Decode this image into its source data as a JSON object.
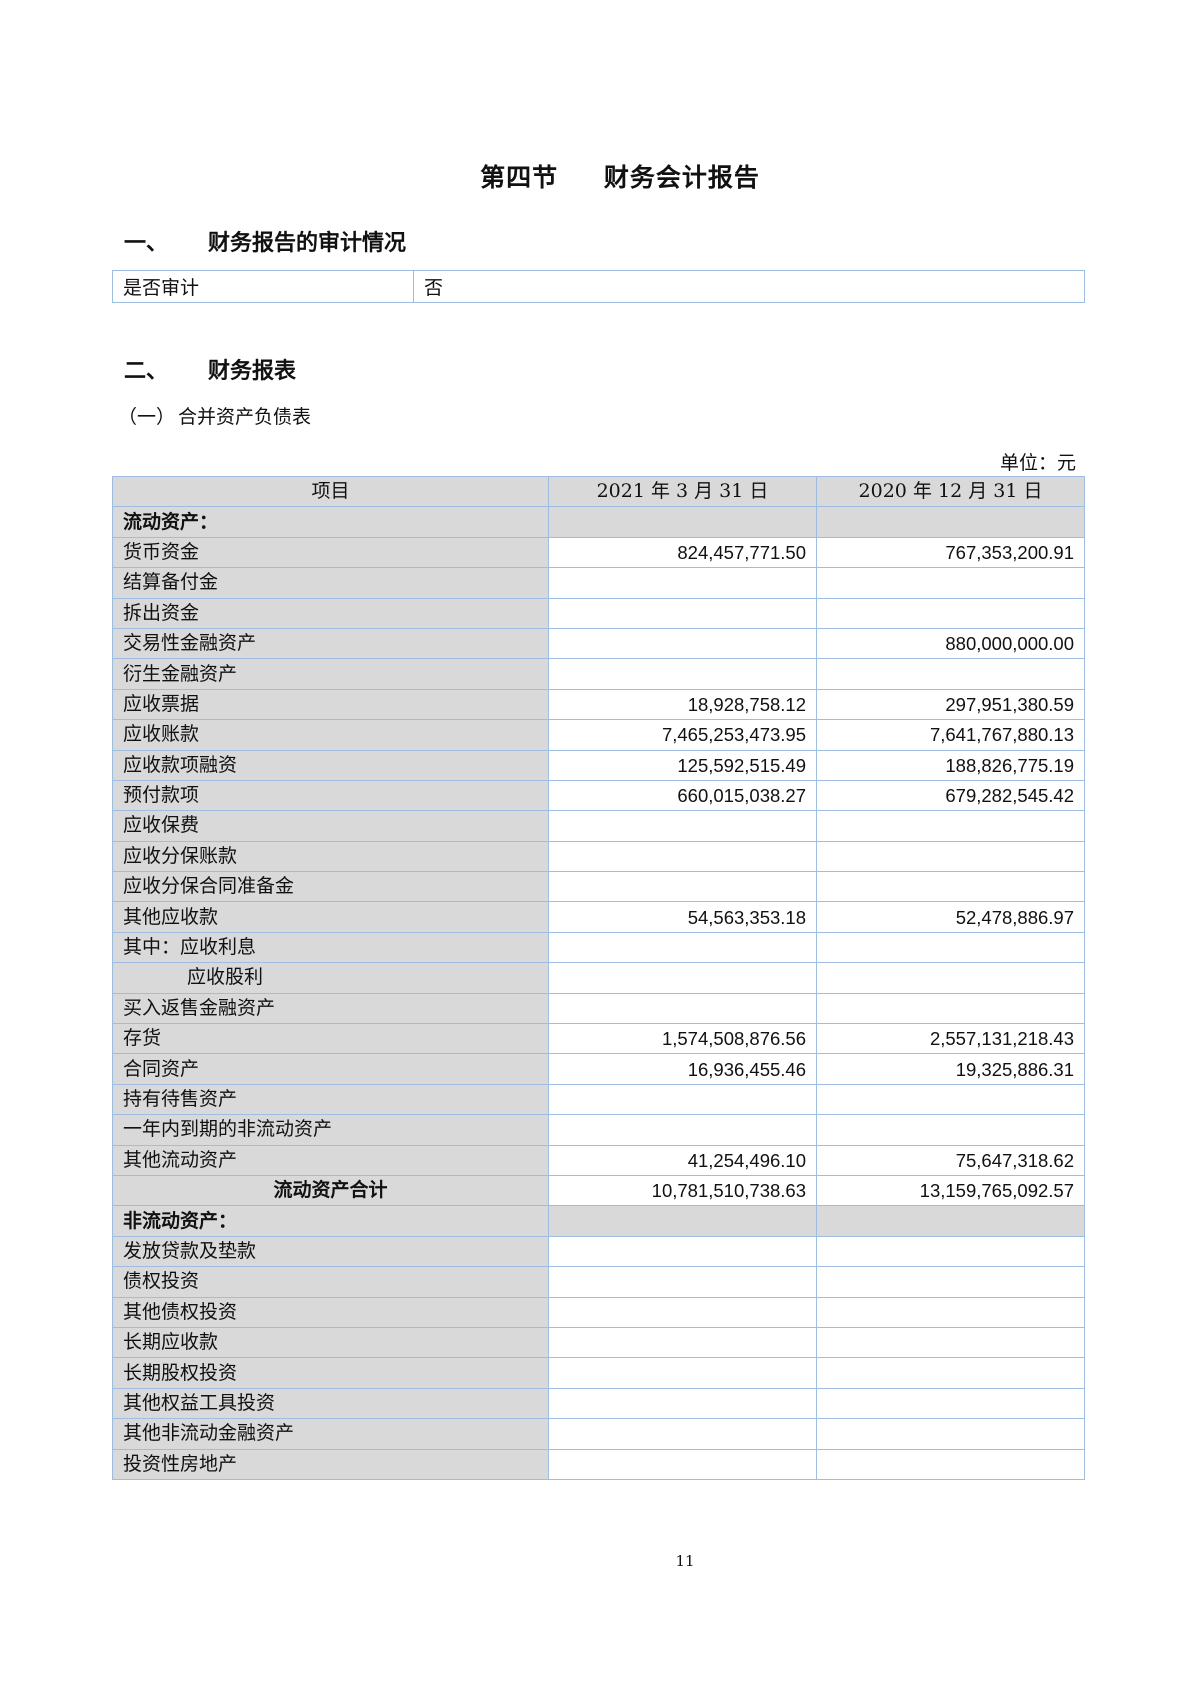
{
  "title": {
    "section": "第四节",
    "name": "财务会计报告"
  },
  "audit_section": {
    "number": "一、",
    "heading": "财务报告的审计情况",
    "label": "是否审计",
    "value": "否"
  },
  "statements_section": {
    "number": "二、",
    "heading": "财务报表"
  },
  "balance_sheet": {
    "number": "（一）",
    "heading": "合并资产负债表",
    "unit": "单位：元",
    "columns": [
      "项目",
      "2021 年 3 月 31 日",
      "2020 年 12 月 31 日"
    ],
    "rows": [
      {
        "item": "流动资产：",
        "v2021": "",
        "v2020": "",
        "type": "section"
      },
      {
        "item": "货币资金",
        "v2021": "824,457,771.50",
        "v2020": "767,353,200.91"
      },
      {
        "item": "结算备付金",
        "v2021": "",
        "v2020": ""
      },
      {
        "item": "拆出资金",
        "v2021": "",
        "v2020": ""
      },
      {
        "item": "交易性金融资产",
        "v2021": "",
        "v2020": "880,000,000.00"
      },
      {
        "item": "衍生金融资产",
        "v2021": "",
        "v2020": ""
      },
      {
        "item": "应收票据",
        "v2021": "18,928,758.12",
        "v2020": "297,951,380.59"
      },
      {
        "item": "应收账款",
        "v2021": "7,465,253,473.95",
        "v2020": "7,641,767,880.13"
      },
      {
        "item": "应收款项融资",
        "v2021": "125,592,515.49",
        "v2020": "188,826,775.19"
      },
      {
        "item": "预付款项",
        "v2021": "660,015,038.27",
        "v2020": "679,282,545.42"
      },
      {
        "item": "应收保费",
        "v2021": "",
        "v2020": ""
      },
      {
        "item": "应收分保账款",
        "v2021": "",
        "v2020": ""
      },
      {
        "item": "应收分保合同准备金",
        "v2021": "",
        "v2020": ""
      },
      {
        "item": "其他应收款",
        "v2021": "54,563,353.18",
        "v2020": "52,478,886.97"
      },
      {
        "item": "其中：应收利息",
        "v2021": "",
        "v2020": ""
      },
      {
        "item": "应收股利",
        "v2021": "",
        "v2020": "",
        "type": "indent"
      },
      {
        "item": "买入返售金融资产",
        "v2021": "",
        "v2020": ""
      },
      {
        "item": "存货",
        "v2021": "1,574,508,876.56",
        "v2020": "2,557,131,218.43"
      },
      {
        "item": "合同资产",
        "v2021": "16,936,455.46",
        "v2020": "19,325,886.31"
      },
      {
        "item": "持有待售资产",
        "v2021": "",
        "v2020": ""
      },
      {
        "item": "一年内到期的非流动资产",
        "v2021": "",
        "v2020": ""
      },
      {
        "item": "其他流动资产",
        "v2021": "41,254,496.10",
        "v2020": "75,647,318.62"
      },
      {
        "item": "流动资产合计",
        "v2021": "10,781,510,738.63",
        "v2020": "13,159,765,092.57",
        "type": "total"
      },
      {
        "item": "非流动资产：",
        "v2021": "",
        "v2020": "",
        "type": "section"
      },
      {
        "item": "发放贷款及垫款",
        "v2021": "",
        "v2020": ""
      },
      {
        "item": "债权投资",
        "v2021": "",
        "v2020": ""
      },
      {
        "item": "其他债权投资",
        "v2021": "",
        "v2020": ""
      },
      {
        "item": "长期应收款",
        "v2021": "",
        "v2020": ""
      },
      {
        "item": "长期股权投资",
        "v2021": "",
        "v2020": ""
      },
      {
        "item": "其他权益工具投资",
        "v2021": "",
        "v2020": ""
      },
      {
        "item": "其他非流动金融资产",
        "v2021": "",
        "v2020": ""
      },
      {
        "item": "投资性房地产",
        "v2021": "",
        "v2020": ""
      }
    ]
  },
  "page_number": "11",
  "colors": {
    "border": "#9dbde3",
    "label_cell_bg": "#d9d9d9"
  }
}
